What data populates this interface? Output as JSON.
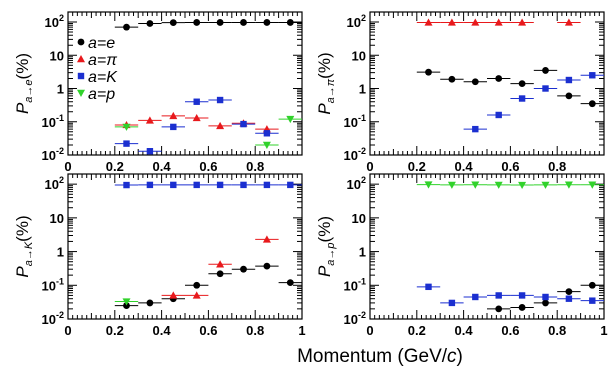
{
  "figure": {
    "xlabel_main": "Momentum (GeV/",
    "xlabel_unit": "c",
    "xlabel_close": ")"
  },
  "legend": [
    {
      "label": "a=e",
      "symbol": "circle",
      "color": "#000000"
    },
    {
      "label": "a=π",
      "symbol": "triangle-up",
      "color": "#e8191c"
    },
    {
      "label": "a=K",
      "symbol": "square",
      "color": "#1b2fd0"
    },
    {
      "label": "a=p",
      "symbol": "triangle-down",
      "color": "#31d22b"
    }
  ],
  "chart_data": [
    {
      "type": "scatter",
      "panel": "top-left",
      "ylabel_var": "P",
      "ylabel_sub": "a→e",
      "ylabel_unit": "(%)",
      "xlim": [
        0,
        1.0
      ],
      "ylim": [
        0.01,
        200
      ],
      "yscale": "log",
      "xticks": [
        "0",
        "0.2",
        "0.4",
        "0.6",
        "0.8"
      ],
      "yticks": [
        {
          "base": "10",
          "exp": "-2"
        },
        {
          "base": "10",
          "exp": "-1"
        },
        {
          "base": "1",
          "exp": ""
        },
        {
          "base": "10",
          "exp": ""
        },
        {
          "base": "10",
          "exp": "2"
        }
      ],
      "series": [
        {
          "name": "a=e",
          "symbol": "circle",
          "color": "#000000",
          "x": [
            0.25,
            0.35,
            0.45,
            0.55,
            0.65,
            0.75,
            0.85,
            0.95
          ],
          "y": [
            70,
            90,
            96,
            97,
            97,
            97,
            97,
            97
          ]
        },
        {
          "name": "a=π",
          "symbol": "triangle-up",
          "color": "#e8191c",
          "x": [
            0.25,
            0.35,
            0.45,
            0.55,
            0.65,
            0.75,
            0.85
          ],
          "y": [
            0.08,
            0.11,
            0.15,
            0.13,
            0.075,
            0.09,
            0.06
          ]
        },
        {
          "name": "a=K",
          "symbol": "square",
          "color": "#1b2fd0",
          "x": [
            0.25,
            0.35,
            0.45,
            0.55,
            0.65,
            0.75,
            0.85
          ],
          "y": [
            0.022,
            0.013,
            0.07,
            0.4,
            0.45,
            0.085,
            0.045
          ]
        },
        {
          "name": "a=p",
          "symbol": "triangle-down",
          "color": "#31d22b",
          "x": [
            0.25,
            0.85,
            0.95
          ],
          "y": [
            0.07,
            0.02,
            0.12
          ]
        }
      ]
    },
    {
      "type": "scatter",
      "panel": "top-right",
      "ylabel_var": "P",
      "ylabel_sub": "a→π",
      "ylabel_unit": "(%)",
      "xlim": [
        0,
        1.0
      ],
      "ylim": [
        0.01,
        200
      ],
      "yscale": "log",
      "xticks": [
        "0",
        "0.2",
        "0.4",
        "0.6",
        "0.8"
      ],
      "yticks": [
        {
          "base": "10",
          "exp": "-2"
        },
        {
          "base": "10",
          "exp": "-1"
        },
        {
          "base": "1",
          "exp": ""
        },
        {
          "base": "10",
          "exp": ""
        },
        {
          "base": "10",
          "exp": "2"
        }
      ],
      "series": [
        {
          "name": "a=e",
          "symbol": "circle",
          "color": "#000000",
          "x": [
            0.25,
            0.35,
            0.45,
            0.55,
            0.65,
            0.75,
            0.85,
            0.95
          ],
          "y": [
            3.1,
            1.9,
            1.6,
            2.0,
            1.4,
            3.5,
            0.6,
            0.35
          ]
        },
        {
          "name": "a=π",
          "symbol": "triangle-up",
          "color": "#e8191c",
          "x": [
            0.25,
            0.35,
            0.45,
            0.55,
            0.65,
            0.85
          ],
          "y": [
            97,
            97,
            97,
            97,
            97,
            97
          ]
        },
        {
          "name": "a=K",
          "symbol": "square",
          "color": "#1b2fd0",
          "x": [
            0.45,
            0.55,
            0.65,
            0.75,
            0.85,
            0.95
          ],
          "y": [
            0.06,
            0.16,
            0.5,
            1.0,
            1.8,
            2.5
          ]
        }
      ]
    },
    {
      "type": "scatter",
      "panel": "bottom-left",
      "ylabel_var": "P",
      "ylabel_sub": "a→K",
      "ylabel_unit": "(%)",
      "xlim": [
        0,
        1.0
      ],
      "ylim": [
        0.01,
        200
      ],
      "yscale": "log",
      "xticks": [
        "0",
        "0.2",
        "0.4",
        "0.6",
        "0.8",
        "1"
      ],
      "yticks": [
        {
          "base": "10",
          "exp": "-2"
        },
        {
          "base": "10",
          "exp": "-1"
        },
        {
          "base": "1",
          "exp": ""
        },
        {
          "base": "10",
          "exp": ""
        },
        {
          "base": "10",
          "exp": "2"
        }
      ],
      "series": [
        {
          "name": "a=e",
          "symbol": "circle",
          "color": "#000000",
          "x": [
            0.25,
            0.35,
            0.45,
            0.55,
            0.65,
            0.75,
            0.85,
            0.95
          ],
          "y": [
            0.025,
            0.03,
            0.04,
            0.1,
            0.22,
            0.3,
            0.37,
            0.12
          ]
        },
        {
          "name": "a=π",
          "symbol": "triangle-up",
          "color": "#e8191c",
          "x": [
            0.45,
            0.55,
            0.65,
            0.85
          ],
          "y": [
            0.05,
            0.05,
            0.42,
            2.3
          ]
        },
        {
          "name": "a=K",
          "symbol": "square",
          "color": "#1b2fd0",
          "x": [
            0.25,
            0.35,
            0.45,
            0.55,
            0.65,
            0.75,
            0.85,
            0.95
          ],
          "y": [
            94,
            95,
            95,
            95,
            95,
            95,
            95,
            95
          ]
        },
        {
          "name": "a=p",
          "symbol": "triangle-down",
          "color": "#31d22b",
          "x": [
            0.25
          ],
          "y": [
            0.033
          ]
        }
      ]
    },
    {
      "type": "scatter",
      "panel": "bottom-right",
      "ylabel_var": "P",
      "ylabel_sub": "a→p",
      "ylabel_unit": "(%)",
      "xlim": [
        0,
        1.0
      ],
      "ylim": [
        0.01,
        200
      ],
      "yscale": "log",
      "xticks": [
        "0",
        "0.2",
        "0.4",
        "0.6",
        "0.8",
        "1"
      ],
      "yticks": [
        {
          "base": "10",
          "exp": "-2"
        },
        {
          "base": "10",
          "exp": "-1"
        },
        {
          "base": "1",
          "exp": ""
        },
        {
          "base": "10",
          "exp": ""
        },
        {
          "base": "10",
          "exp": "2"
        }
      ],
      "series": [
        {
          "name": "a=e",
          "symbol": "circle",
          "color": "#000000",
          "x": [
            0.55,
            0.65,
            0.75,
            0.85,
            0.95
          ],
          "y": [
            0.02,
            0.022,
            0.03,
            0.065,
            0.1
          ]
        },
        {
          "name": "a=K",
          "symbol": "square",
          "color": "#1b2fd0",
          "x": [
            0.25,
            0.35,
            0.45,
            0.55,
            0.65,
            0.75,
            0.85,
            0.95
          ],
          "y": [
            0.09,
            0.03,
            0.045,
            0.05,
            0.05,
            0.045,
            0.04,
            0.035
          ]
        },
        {
          "name": "a=p",
          "symbol": "triangle-down",
          "color": "#31d22b",
          "x": [
            0.25,
            0.35,
            0.45,
            0.55,
            0.65,
            0.75,
            0.85,
            0.95
          ],
          "y": [
            97,
            95,
            96,
            95,
            94,
            95,
            96,
            96
          ]
        }
      ]
    }
  ]
}
